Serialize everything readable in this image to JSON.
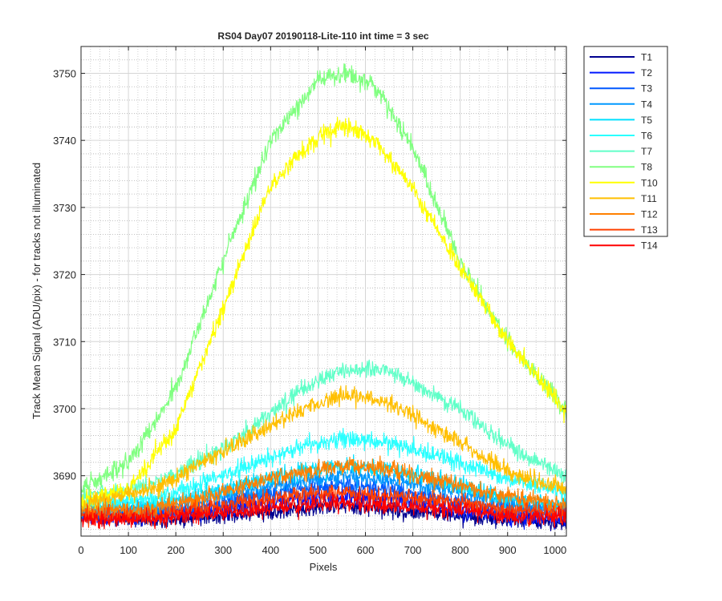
{
  "chart_data": {
    "type": "line",
    "title": "RS04 Day07 20190118-Lite-110 int time = 3 sec",
    "xlabel": "Pixels",
    "ylabel": "Track Mean Signal (ADU/pix) - for tracks not illuminated",
    "xlim": [
      0,
      1024
    ],
    "ylim": [
      3681,
      3754
    ],
    "xticks": [
      0,
      100,
      200,
      300,
      400,
      500,
      600,
      700,
      800,
      900,
      1000
    ],
    "yticks": [
      3690,
      3700,
      3710,
      3720,
      3730,
      3740,
      3750
    ],
    "grid": "major and minor, dotted",
    "legend_position": "outside-right",
    "series": [
      {
        "name": "T1",
        "color": "#00008f",
        "profile": {
          "x": [
            0,
            150,
            300,
            450,
            550,
            650,
            800,
            900,
            1024
          ],
          "y": [
            3684.0,
            3683.5,
            3684.0,
            3685.0,
            3685.5,
            3685.0,
            3684.0,
            3683.5,
            3683.0
          ]
        },
        "noise": 0.9
      },
      {
        "name": "T2",
        "color": "#0018ff",
        "profile": {
          "x": [
            0,
            150,
            300,
            450,
            550,
            650,
            800,
            900,
            1024
          ],
          "y": [
            3684.0,
            3684.0,
            3685.0,
            3686.5,
            3687.0,
            3686.5,
            3685.0,
            3684.0,
            3683.5
          ]
        },
        "noise": 0.9
      },
      {
        "name": "T3",
        "color": "#0058ff",
        "profile": {
          "x": [
            0,
            150,
            300,
            450,
            550,
            650,
            800,
            900,
            1024
          ],
          "y": [
            3684.5,
            3684.5,
            3686.0,
            3688.0,
            3688.5,
            3688.0,
            3686.0,
            3685.0,
            3684.5
          ]
        },
        "noise": 0.9
      },
      {
        "name": "T4",
        "color": "#0098ff",
        "profile": {
          "x": [
            0,
            150,
            300,
            450,
            550,
            650,
            800,
            900,
            1024
          ],
          "y": [
            3685.0,
            3685.0,
            3687.0,
            3689.0,
            3690.0,
            3689.5,
            3687.5,
            3686.0,
            3685.0
          ]
        },
        "noise": 0.9
      },
      {
        "name": "T5",
        "color": "#00e0ff",
        "profile": {
          "x": [
            0,
            150,
            300,
            450,
            550,
            650,
            800,
            900,
            1024
          ],
          "y": [
            3685.0,
            3685.5,
            3688.0,
            3690.5,
            3691.5,
            3691.0,
            3688.5,
            3686.5,
            3685.5
          ]
        },
        "noise": 0.9
      },
      {
        "name": "T6",
        "color": "#2affff",
        "profile": {
          "x": [
            0,
            150,
            300,
            450,
            550,
            650,
            800,
            900,
            1024
          ],
          "y": [
            3686.0,
            3686.5,
            3690.0,
            3694.0,
            3695.5,
            3695.0,
            3692.0,
            3689.5,
            3687.5
          ]
        },
        "noise": 0.9
      },
      {
        "name": "T7",
        "color": "#60ffc8",
        "profile": {
          "x": [
            0,
            150,
            300,
            450,
            550,
            650,
            800,
            900,
            1024
          ],
          "y": [
            3687.0,
            3688.5,
            3694.0,
            3702.0,
            3706.0,
            3705.5,
            3700.0,
            3694.5,
            3690.0
          ]
        },
        "noise": 0.9
      },
      {
        "name": "T8",
        "color": "#80ff80",
        "profile": {
          "x": [
            0,
            100,
            200,
            300,
            400,
            500,
            560,
            620,
            700,
            800,
            900,
            1024
          ],
          "y": [
            3688.0,
            3692.0,
            3703.0,
            3722.0,
            3740.0,
            3749.0,
            3750.0,
            3748.0,
            3739.0,
            3722.0,
            3710.0,
            3699.5
          ]
        },
        "noise": 1.0
      },
      {
        "name": "T10",
        "color": "#ffff00",
        "profile": {
          "x": [
            0,
            100,
            200,
            300,
            400,
            500,
            560,
            620,
            700,
            800,
            900,
            1024
          ],
          "y": [
            3686.0,
            3688.0,
            3697.0,
            3715.0,
            3733.0,
            3741.0,
            3742.0,
            3740.0,
            3733.0,
            3721.0,
            3710.0,
            3699.5
          ]
        },
        "noise": 1.0
      },
      {
        "name": "T11",
        "color": "#ffbf00",
        "profile": {
          "x": [
            0,
            150,
            300,
            450,
            550,
            650,
            800,
            900,
            1024
          ],
          "y": [
            3685.5,
            3688.0,
            3693.5,
            3699.5,
            3702.0,
            3701.0,
            3695.0,
            3690.5,
            3688.0
          ]
        },
        "noise": 0.9
      },
      {
        "name": "T12",
        "color": "#ff8000",
        "profile": {
          "x": [
            0,
            150,
            300,
            450,
            550,
            650,
            800,
            900,
            1024
          ],
          "y": [
            3684.5,
            3685.0,
            3687.5,
            3690.5,
            3691.5,
            3691.0,
            3688.5,
            3687.0,
            3685.5
          ]
        },
        "noise": 0.9
      },
      {
        "name": "T13",
        "color": "#ff4000",
        "profile": {
          "x": [
            0,
            150,
            300,
            450,
            550,
            650,
            800,
            900,
            1024
          ],
          "y": [
            3684.0,
            3684.0,
            3685.5,
            3687.0,
            3687.5,
            3687.0,
            3686.0,
            3685.0,
            3684.5
          ]
        },
        "noise": 0.9
      },
      {
        "name": "T14",
        "color": "#ff0000",
        "profile": {
          "x": [
            0,
            150,
            300,
            450,
            550,
            650,
            800,
            900,
            1024
          ],
          "y": [
            3683.5,
            3683.5,
            3684.5,
            3685.5,
            3686.0,
            3685.5,
            3685.0,
            3684.0,
            3683.5
          ]
        },
        "noise": 0.9
      }
    ]
  }
}
